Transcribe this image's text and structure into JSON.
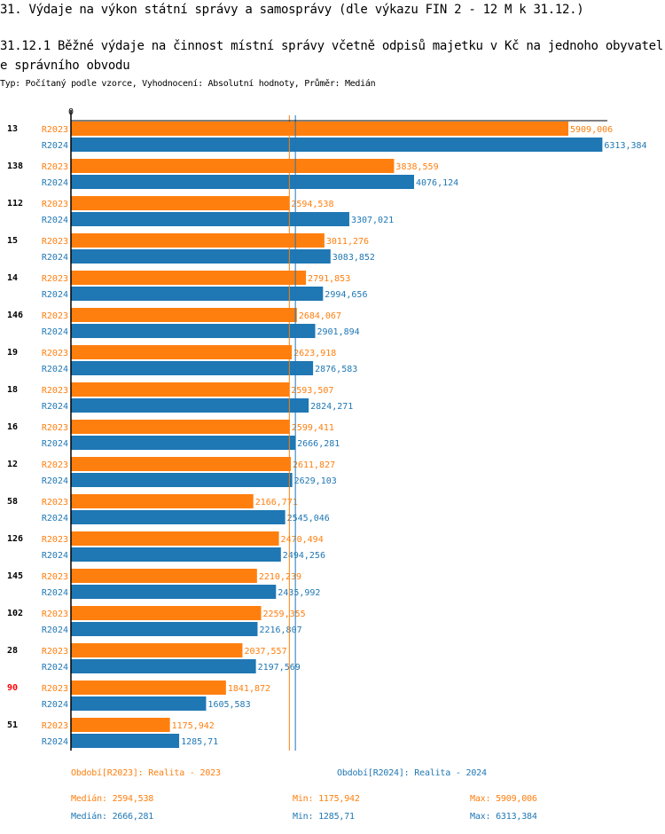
{
  "header": {
    "title": "31. Výdaje na výkon státní správy a samosprávy (dle výkazu FIN 2 - 12 M k 31.12.)",
    "subtitle": "31.12.1 Běžné výdaje na činnost místní správy včetně odpisů majetku v Kč na jednoho obyvatele správního obvodu",
    "meta": "Typ: Počítaný podle vzorce, Vyhodnocení: Absolutní hodnoty, Průměr: Medián"
  },
  "colors": {
    "R2023": "#ff7f0e",
    "R2024": "#1f77b4",
    "highlight": "#ff0000"
  },
  "chart_data": {
    "type": "bar",
    "orientation": "horizontal",
    "xlim": [
      0,
      6313.384
    ],
    "x_tick_labels": [
      "0"
    ],
    "series_names": [
      "R2023",
      "R2024"
    ],
    "categories": [
      "13",
      "138",
      "112",
      "15",
      "14",
      "146",
      "19",
      "18",
      "16",
      "12",
      "58",
      "126",
      "145",
      "102",
      "28",
      "90",
      "51"
    ],
    "highlighted_category": "90",
    "series": [
      {
        "name": "R2023",
        "values": [
          5909.006,
          3838.559,
          2594.538,
          3011.276,
          2791.853,
          2684.067,
          2623.918,
          2593.507,
          2599.411,
          2611.827,
          2166.771,
          2470.494,
          2210.239,
          2259.355,
          2037.557,
          1841.872,
          1175.942
        ],
        "labels": [
          "5909,006",
          "3838,559",
          "2594,538",
          "3011,276",
          "2791,853",
          "2684,067",
          "2623,918",
          "2593,507",
          "2599,411",
          "2611,827",
          "2166,771",
          "2470,494",
          "2210,239",
          "2259,355",
          "2037,557",
          "1841,872",
          "1175,942"
        ]
      },
      {
        "name": "R2024",
        "values": [
          6313.384,
          4076.124,
          3307.021,
          3083.852,
          2994.656,
          2901.894,
          2876.583,
          2824.271,
          2666.281,
          2629.103,
          2545.046,
          2494.256,
          2435.992,
          2216.807,
          2197.569,
          1605.583,
          1285.71
        ],
        "labels": [
          "6313,384",
          "4076,124",
          "3307,021",
          "3083,852",
          "2994,656",
          "2901,894",
          "2876,583",
          "2824,271",
          "2666,281",
          "2629,103",
          "2545,046",
          "2494,256",
          "2435,992",
          "2216,807",
          "2197,569",
          "1605,583",
          "1285,71"
        ]
      }
    ],
    "median_lines": {
      "R2023": 2594.538,
      "R2024": 2666.281
    }
  },
  "legend": {
    "r2023": "Období[R2023]: Realita - 2023",
    "r2024": "Období[R2024]: Realita - 2024"
  },
  "stats": {
    "r2023": {
      "median": "Medián: 2594,538",
      "min": "Min: 1175,942",
      "max": "Max: 5909,006"
    },
    "r2024": {
      "median": "Medián: 2666,281",
      "min": "Min: 1285,71",
      "max": "Max: 6313,384"
    }
  }
}
